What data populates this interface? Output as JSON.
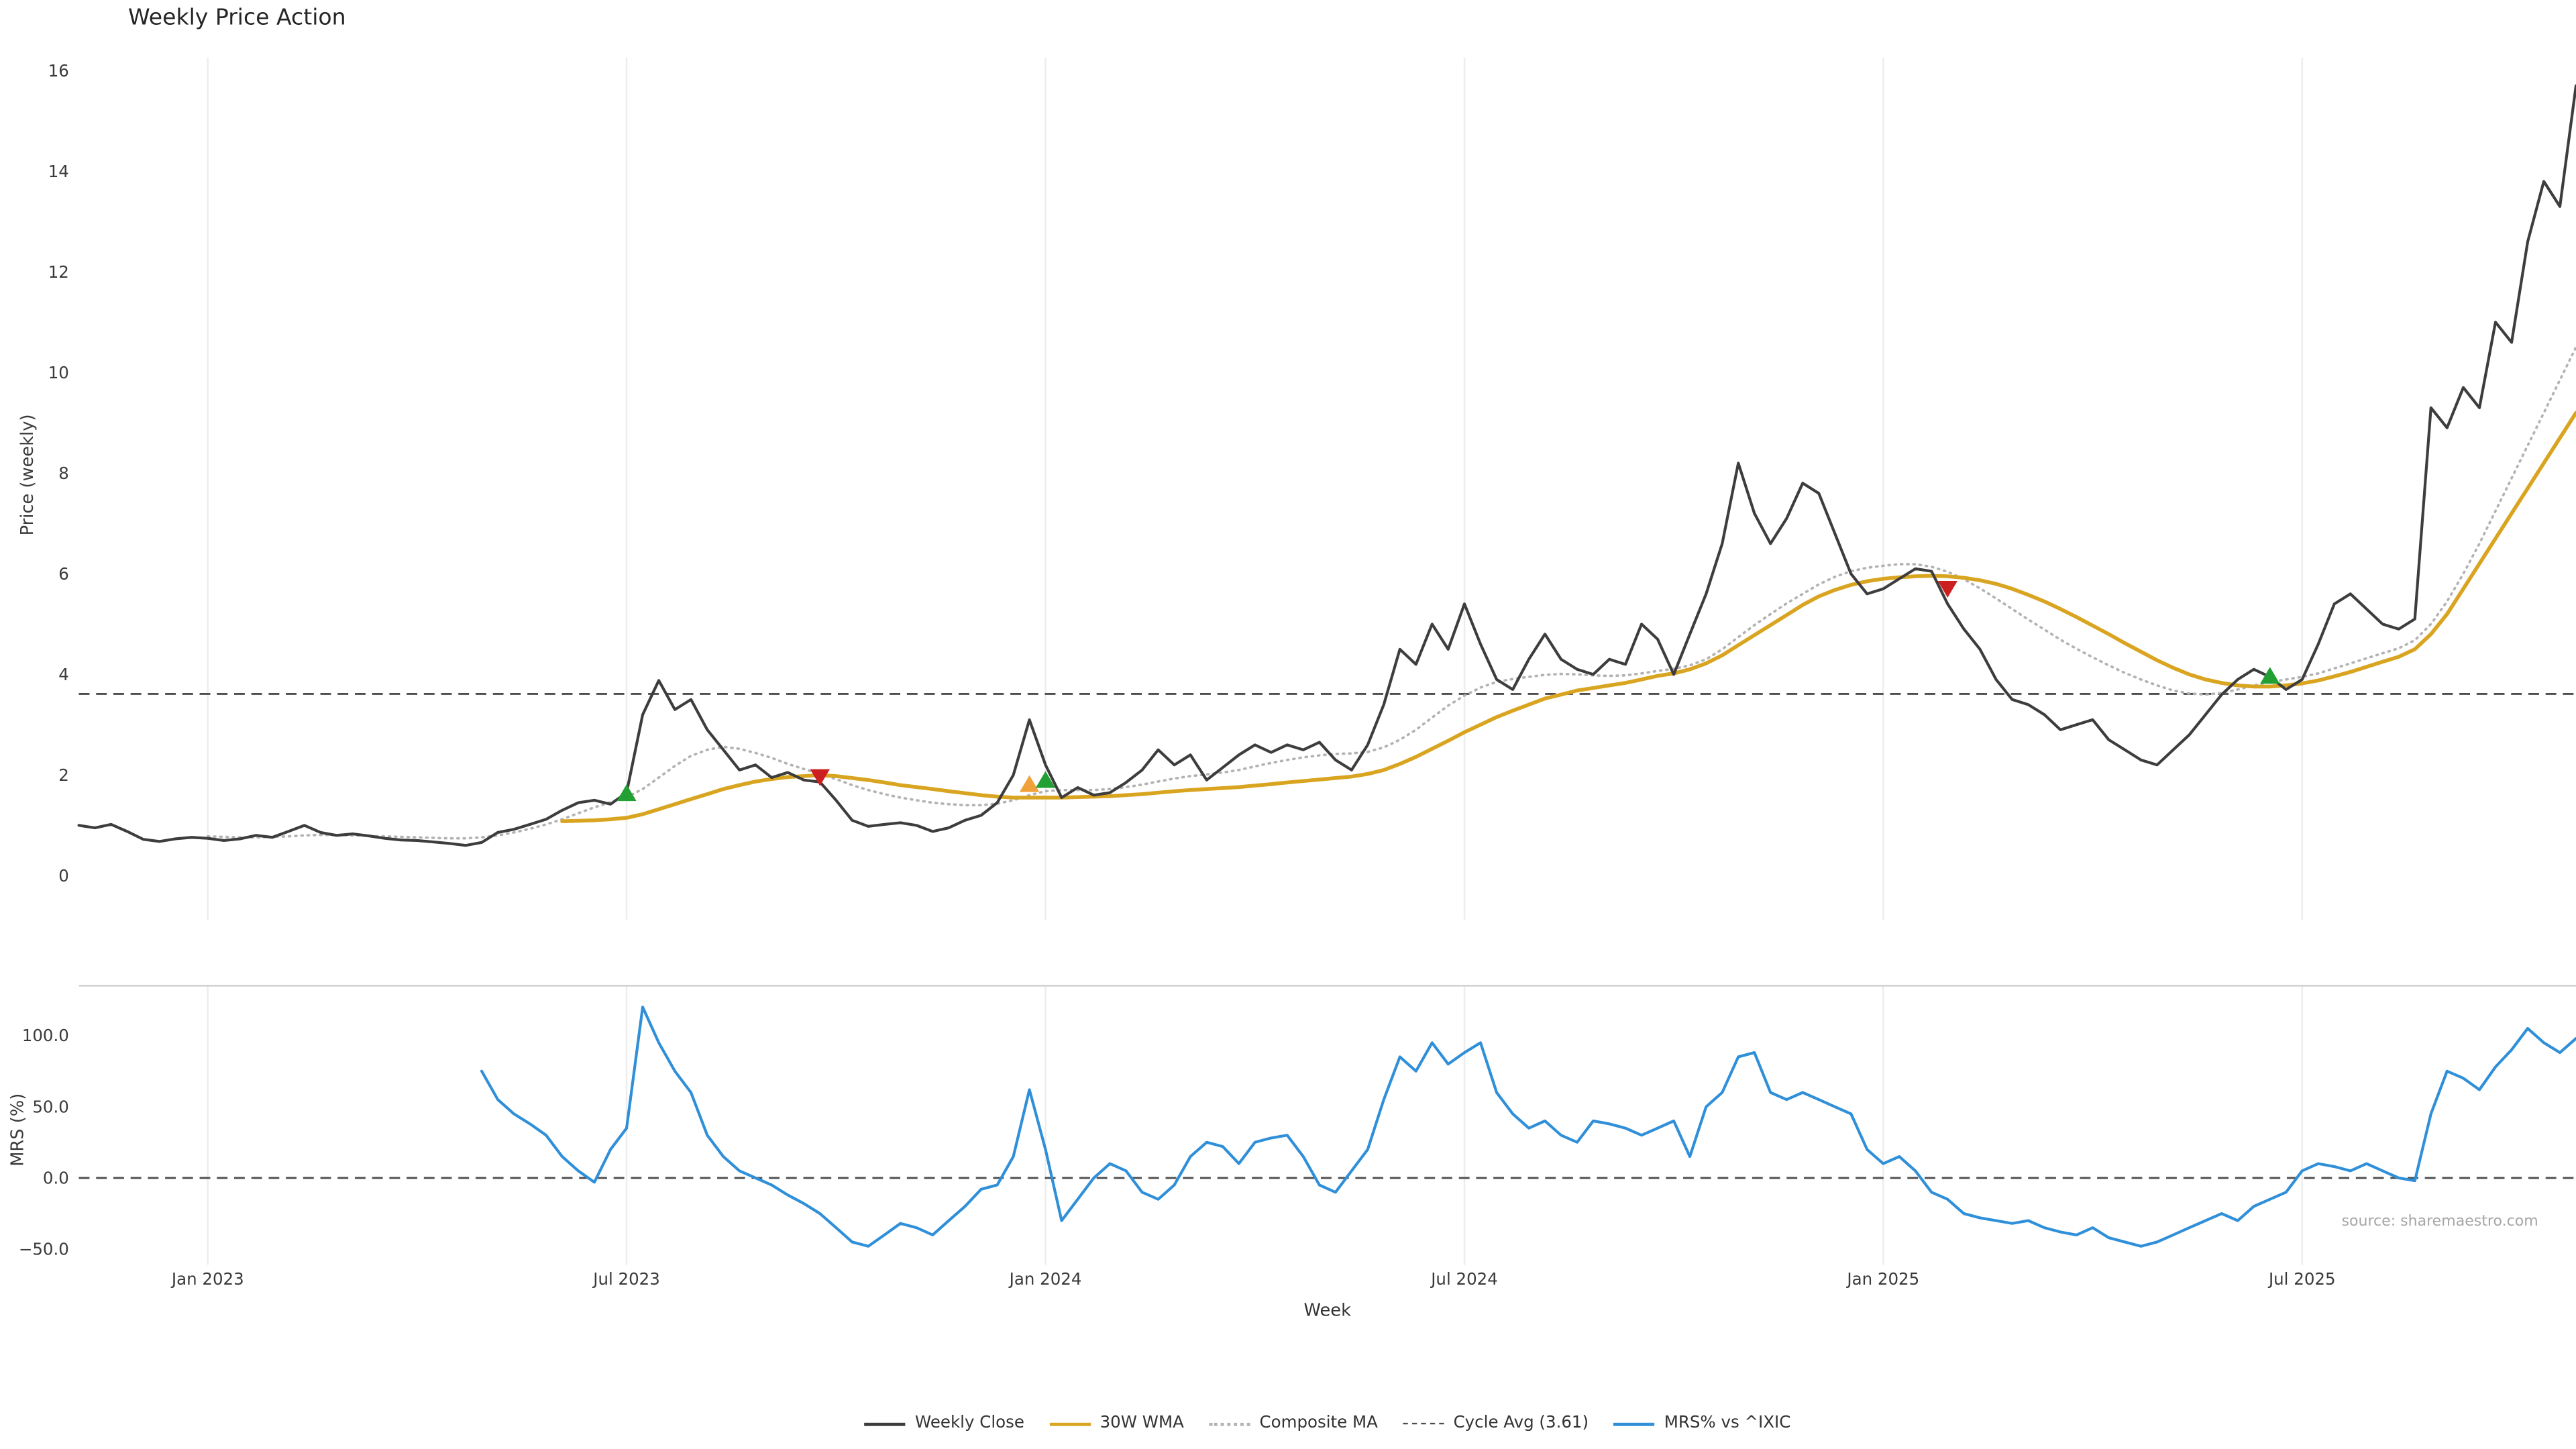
{
  "chart_data": {
    "type": "line",
    "title": "Weekly Price Action",
    "xlabel": "Week",
    "source": "source: sharemaestro.com",
    "n_weeks": 156,
    "x_tick_indices": [
      8,
      34,
      60,
      86,
      112,
      138
    ],
    "x_tick_labels": [
      "Jan 2023",
      "Jul 2023",
      "Jan 2024",
      "Jul 2024",
      "Jan 2025",
      "Jul 2025"
    ],
    "legend": [
      {
        "label": "Weekly Close",
        "color": "#3d3d3d",
        "style": "solid"
      },
      {
        "label": "30W WMA",
        "color": "#d9a521",
        "style": "solid"
      },
      {
        "label": "Composite MA",
        "color": "#b3b3b3",
        "style": "dotted"
      },
      {
        "label": "Cycle Avg (3.61)",
        "color": "#4d4d4d",
        "style": "dashed"
      },
      {
        "label": "MRS% vs ^IXIC",
        "color": "#2f8fd8",
        "style": "solid"
      }
    ],
    "panels": [
      {
        "name": "price",
        "ylabel": "Price (weekly)",
        "yticks": [
          0,
          2,
          4,
          6,
          8,
          10,
          12,
          14,
          16
        ],
        "ytick_labels": [
          "0",
          "2",
          "4",
          "6",
          "8",
          "10",
          "12",
          "14",
          "16"
        ],
        "ylim": [
          -0.9,
          16.3
        ],
        "series": [
          {
            "name": "Weekly Close",
            "color": "#3d3d3d",
            "style": "solid",
            "width": 1.7,
            "start_week": 0,
            "values": [
              1.0,
              0.95,
              1.02,
              0.88,
              0.72,
              0.68,
              0.73,
              0.76,
              0.74,
              0.7,
              0.73,
              0.8,
              0.76,
              0.88,
              1.0,
              0.86,
              0.8,
              0.83,
              0.79,
              0.74,
              0.71,
              0.7,
              0.67,
              0.64,
              0.6,
              0.66,
              0.86,
              0.92,
              1.02,
              1.12,
              1.3,
              1.45,
              1.5,
              1.42,
              1.65,
              3.2,
              3.88,
              3.3,
              3.5,
              2.9,
              2.5,
              2.1,
              2.2,
              1.95,
              2.05,
              1.9,
              1.86,
              1.5,
              1.1,
              0.98,
              1.02,
              1.05,
              1.0,
              0.88,
              0.95,
              1.1,
              1.2,
              1.45,
              2.0,
              3.1,
              2.2,
              1.55,
              1.75,
              1.6,
              1.65,
              1.85,
              2.1,
              2.5,
              2.2,
              2.4,
              1.9,
              2.15,
              2.4,
              2.6,
              2.45,
              2.6,
              2.5,
              2.65,
              2.3,
              2.1,
              2.6,
              3.4,
              4.5,
              4.2,
              5.0,
              4.5,
              5.4,
              4.6,
              3.9,
              3.7,
              4.3,
              4.8,
              4.3,
              4.1,
              4.0,
              4.3,
              4.2,
              5.0,
              4.7,
              4.0,
              4.8,
              5.6,
              6.6,
              8.2,
              7.2,
              6.6,
              7.1,
              7.8,
              7.6,
              6.8,
              6.0,
              5.6,
              5.7,
              5.9,
              6.1,
              6.05,
              5.4,
              4.9,
              4.5,
              3.9,
              3.5,
              3.4,
              3.2,
              2.9,
              3.0,
              3.1,
              2.7,
              2.5,
              2.3,
              2.2,
              2.5,
              2.8,
              3.2,
              3.6,
              3.9,
              4.1,
              3.95,
              3.7,
              3.9,
              4.6,
              5.4,
              5.6,
              5.3,
              5.0,
              4.9,
              5.1,
              9.3,
              8.9,
              9.7,
              9.3,
              11.0,
              10.6,
              12.6,
              13.8,
              13.3,
              15.7
            ]
          },
          {
            "name": "30W WMA",
            "color": "#d9a521",
            "style": "solid",
            "width": 2.3,
            "start_week": 30,
            "values": [
              1.08,
              1.09,
              1.1,
              1.12,
              1.15,
              1.22,
              1.32,
              1.42,
              1.52,
              1.62,
              1.72,
              1.8,
              1.87,
              1.92,
              1.96,
              1.98,
              2.0,
              1.98,
              1.94,
              1.9,
              1.85,
              1.8,
              1.76,
              1.72,
              1.68,
              1.64,
              1.6,
              1.57,
              1.55,
              1.55,
              1.55,
              1.55,
              1.56,
              1.57,
              1.58,
              1.6,
              1.62,
              1.65,
              1.68,
              1.7,
              1.72,
              1.74,
              1.76,
              1.79,
              1.82,
              1.85,
              1.88,
              1.91,
              1.94,
              1.97,
              2.02,
              2.1,
              2.22,
              2.36,
              2.52,
              2.68,
              2.85,
              3.0,
              3.15,
              3.28,
              3.4,
              3.52,
              3.6,
              3.68,
              3.73,
              3.78,
              3.83,
              3.9,
              3.97,
              4.02,
              4.1,
              4.22,
              4.38,
              4.58,
              4.78,
              4.98,
              5.18,
              5.38,
              5.55,
              5.68,
              5.78,
              5.85,
              5.9,
              5.93,
              5.95,
              5.96,
              5.95,
              5.92,
              5.87,
              5.8,
              5.7,
              5.58,
              5.45,
              5.3,
              5.14,
              4.97,
              4.8,
              4.62,
              4.45,
              4.28,
              4.13,
              4.0,
              3.9,
              3.83,
              3.78,
              3.76,
              3.76,
              3.78,
              3.82,
              3.88,
              3.96,
              4.05,
              4.15,
              4.25,
              4.35,
              4.5,
              4.8,
              5.2,
              5.7,
              6.2,
              6.7,
              7.2,
              7.7,
              8.2,
              8.7,
              9.2
            ]
          },
          {
            "name": "Composite MA",
            "color": "#b3b3b3",
            "style": "dotted",
            "width": 1.5,
            "start_week": 8,
            "values": [
              0.78,
              0.77,
              0.76,
              0.76,
              0.77,
              0.78,
              0.8,
              0.81,
              0.81,
              0.8,
              0.79,
              0.78,
              0.77,
              0.76,
              0.75,
              0.74,
              0.74,
              0.76,
              0.8,
              0.86,
              0.93,
              1.02,
              1.12,
              1.24,
              1.36,
              1.46,
              1.56,
              1.72,
              1.95,
              2.18,
              2.38,
              2.5,
              2.56,
              2.52,
              2.44,
              2.34,
              2.22,
              2.12,
              2.02,
              1.92,
              1.8,
              1.7,
              1.62,
              1.55,
              1.5,
              1.45,
              1.42,
              1.4,
              1.4,
              1.43,
              1.5,
              1.6,
              1.68,
              1.7,
              1.7,
              1.7,
              1.72,
              1.76,
              1.81,
              1.87,
              1.93,
              1.98,
              2.01,
              2.05,
              2.1,
              2.17,
              2.24,
              2.3,
              2.35,
              2.39,
              2.42,
              2.43,
              2.46,
              2.55,
              2.7,
              2.9,
              3.14,
              3.38,
              3.58,
              3.74,
              3.85,
              3.91,
              3.95,
              3.99,
              4.01,
              4.0,
              3.98,
              3.97,
              3.98,
              4.02,
              4.07,
              4.11,
              4.18,
              4.3,
              4.5,
              4.74,
              4.98,
              5.2,
              5.41,
              5.6,
              5.79,
              5.94,
              6.05,
              6.12,
              6.16,
              6.19,
              6.19,
              6.14,
              6.04,
              5.89,
              5.71,
              5.51,
              5.3,
              5.09,
              4.89,
              4.69,
              4.51,
              4.34,
              4.18,
              4.03,
              3.9,
              3.78,
              3.68,
              3.62,
              3.6,
              3.63,
              3.7,
              3.78,
              3.85,
              3.9,
              3.95,
              4.02,
              4.12,
              4.22,
              4.32,
              4.42,
              4.52,
              4.68,
              5.0,
              5.45,
              6.0,
              6.6,
              7.25,
              7.9,
              8.55,
              9.2,
              9.85,
              10.5
            ]
          },
          {
            "name": "Cycle Avg (3.61)",
            "color": "#4d4d4d",
            "style": "dashed",
            "width": 1.2,
            "type": "hline",
            "value": 3.61
          }
        ],
        "markers": [
          {
            "type": "buy",
            "shape": "triangle-up",
            "color": "#23a033",
            "week": 34,
            "price": 1.62
          },
          {
            "type": "sell",
            "shape": "triangle-down",
            "color": "#cc2020",
            "week": 46,
            "price": 1.98
          },
          {
            "type": "signal",
            "shape": "triangle-up",
            "color": "#f0a13a",
            "week": 59,
            "price": 1.8
          },
          {
            "type": "buy",
            "shape": "triangle-up",
            "color": "#23a033",
            "week": 60,
            "price": 1.88
          },
          {
            "type": "sell",
            "shape": "triangle-down",
            "color": "#cc2020",
            "week": 116,
            "price": 5.72
          },
          {
            "type": "buy",
            "shape": "triangle-up",
            "color": "#23a033",
            "week": 136,
            "price": 3.95
          }
        ]
      },
      {
        "name": "mrs",
        "ylabel": "MRS (%)",
        "yticks": [
          -50,
          0,
          50,
          100
        ],
        "ytick_labels": [
          "−50.0",
          "0.0",
          "50.0",
          "100.0"
        ],
        "ylim": [
          -61,
          135
        ],
        "zero_line": 0,
        "series": [
          {
            "name": "MRS% vs ^IXIC",
            "color": "#2f8fd8",
            "style": "solid",
            "width": 1.7,
            "start_week": 25,
            "values": [
              75,
              55,
              45,
              38,
              30,
              15,
              5,
              -3,
              20,
              35,
              120,
              95,
              75,
              60,
              30,
              15,
              5,
              0,
              -5,
              -12,
              -18,
              -25,
              -35,
              -45,
              -48,
              -40,
              -32,
              -35,
              -40,
              -30,
              -20,
              -8,
              -5,
              15,
              62,
              20,
              -30,
              -15,
              0,
              10,
              5,
              -10,
              -15,
              -5,
              15,
              25,
              22,
              10,
              25,
              28,
              30,
              15,
              -5,
              -10,
              5,
              20,
              55,
              85,
              75,
              95,
              80,
              88,
              95,
              60,
              45,
              35,
              40,
              30,
              25,
              40,
              38,
              35,
              30,
              35,
              40,
              15,
              50,
              60,
              85,
              88,
              60,
              55,
              60,
              55,
              50,
              45,
              20,
              10,
              15,
              5,
              -10,
              -15,
              -25,
              -28,
              -30,
              -32,
              -30,
              -35,
              -38,
              -40,
              -35,
              -42,
              -45,
              -48,
              -45,
              -40,
              -35,
              -30,
              -25,
              -30,
              -20,
              -15,
              -10,
              5,
              10,
              8,
              5,
              10,
              5,
              0,
              -2,
              45,
              75,
              70,
              62,
              78,
              90,
              105,
              95,
              88,
              98
            ]
          }
        ]
      }
    ]
  }
}
